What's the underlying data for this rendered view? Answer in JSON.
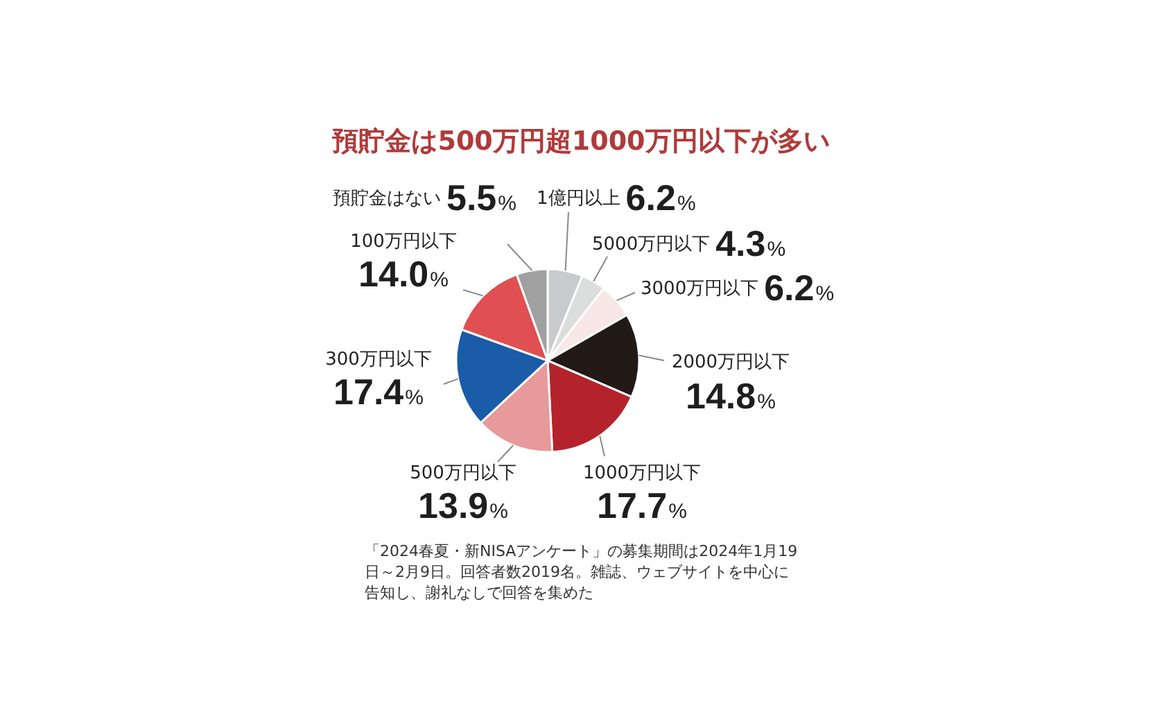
{
  "chart_data": {
    "type": "pie",
    "title": "預貯金は500万円超1000万円以下が多い",
    "categories": [
      "1億円以上",
      "5000万円以下",
      "3000万円以下",
      "2000万円以下",
      "1000万円以下",
      "500万円以下",
      "300万円以下",
      "100万円以下",
      "預貯金はない"
    ],
    "values": [
      6.2,
      4.3,
      6.2,
      14.8,
      17.7,
      13.9,
      17.4,
      14.0,
      5.5
    ],
    "colors": [
      "#c8cacb",
      "#dcdddd",
      "#f7e7e7",
      "#211a17",
      "#b4232b",
      "#e8999b",
      "#1a5ca8",
      "#e04f52",
      "#a0a0a0"
    ],
    "value_labels": [
      "6.2%",
      "4.3%",
      "6.2%",
      "14.8%",
      "17.7%",
      "13.9%",
      "17.4%",
      "14.0%",
      "5.5%"
    ],
    "annotations": [
      "「2024春夏・新NISAアンケート」の募集期間は2024年1月19日～2月9日。回答者数2019名。雑誌、ウェブサイトを中心に告知し、謝礼なしで回答を集めた"
    ]
  }
}
